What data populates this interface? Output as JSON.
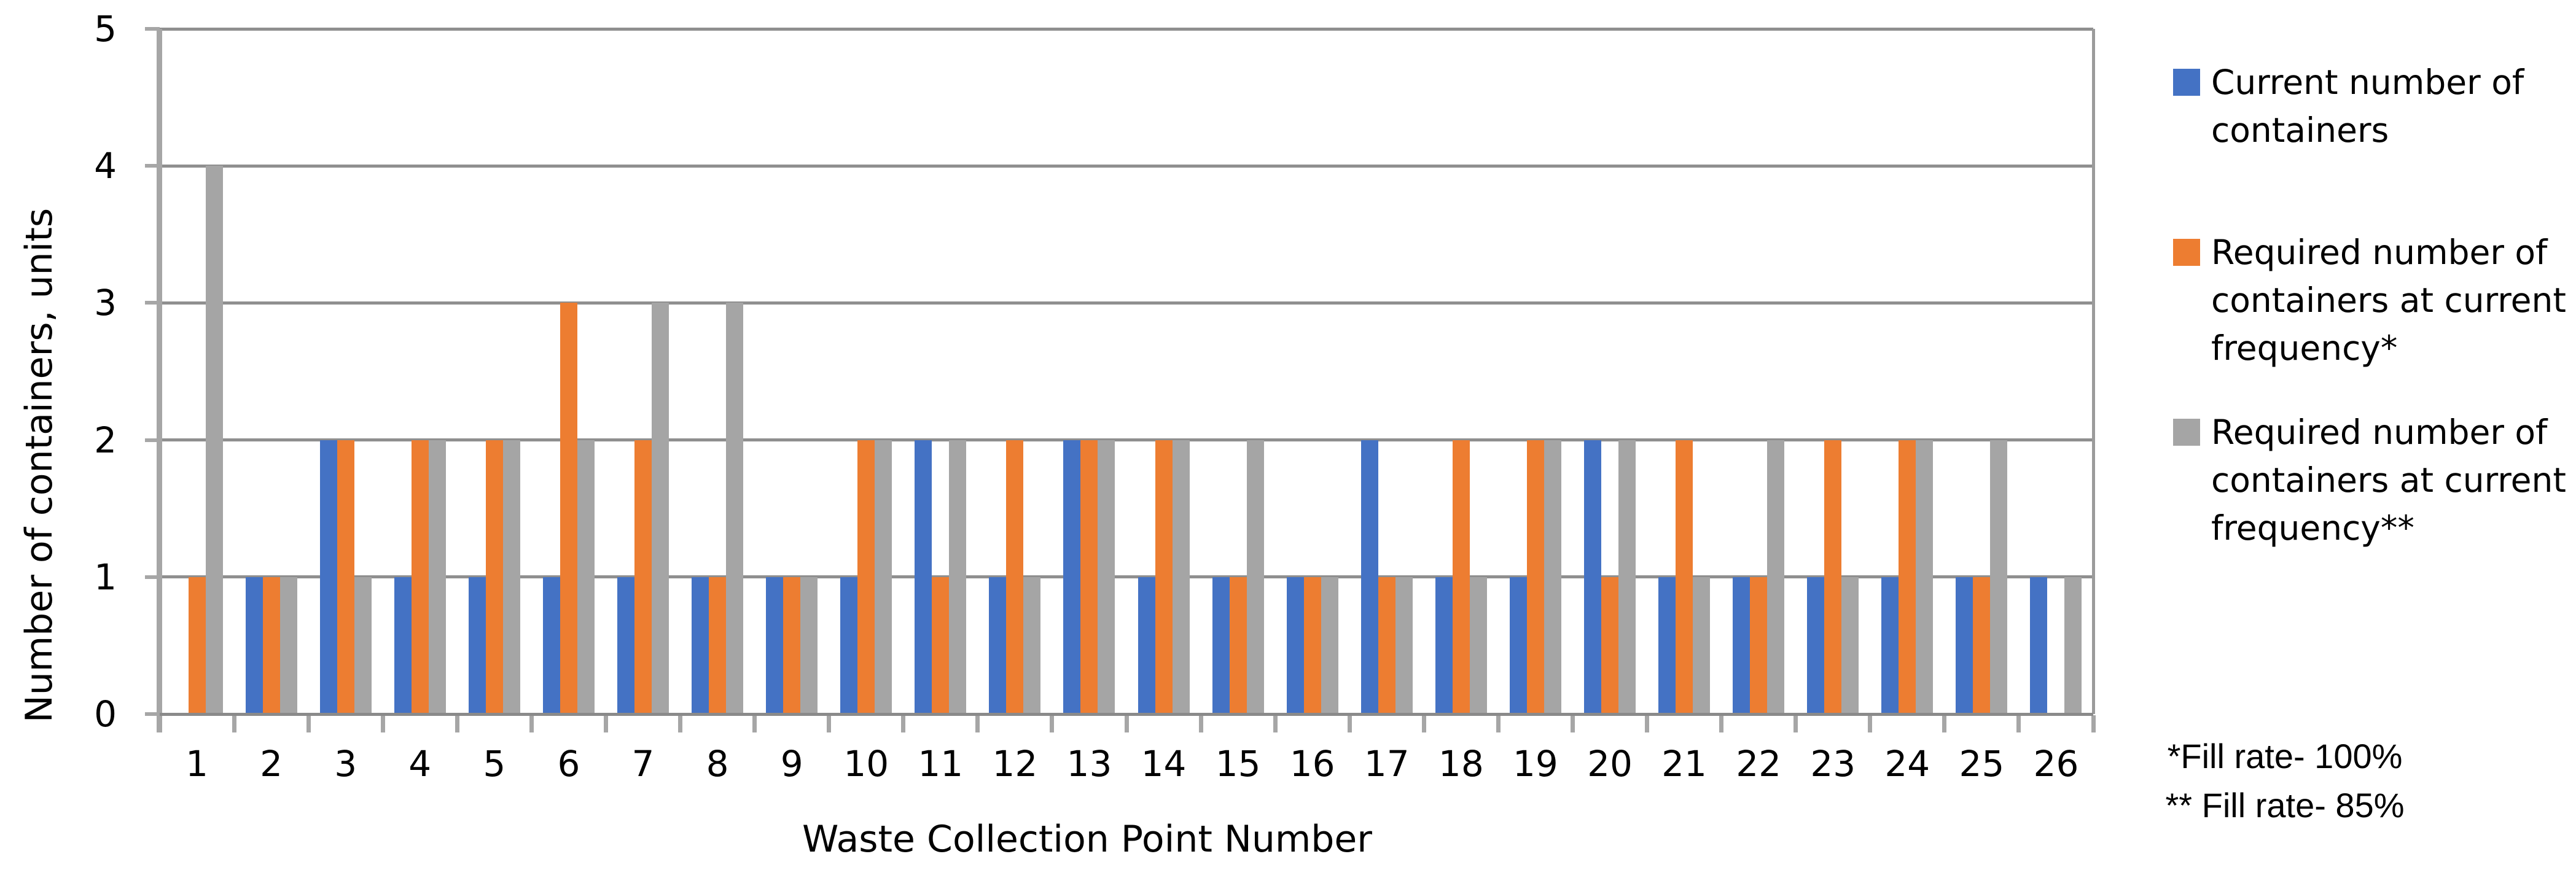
{
  "chart_data": {
    "type": "bar",
    "xlabel": "Waste Collection Point Number",
    "ylabel": "Number of containers, units",
    "categories": [
      1,
      2,
      3,
      4,
      5,
      6,
      7,
      8,
      9,
      10,
      11,
      12,
      13,
      14,
      15,
      16,
      17,
      18,
      19,
      20,
      21,
      22,
      23,
      24,
      25,
      26
    ],
    "series": [
      {
        "name": "Current number of containers",
        "lines": [
          "Current number of",
          "containers"
        ],
        "color": "#4472C4",
        "values": [
          0,
          1,
          2,
          1,
          1,
          1,
          1,
          1,
          1,
          1,
          2,
          1,
          2,
          1,
          1,
          1,
          2,
          1,
          1,
          2,
          1,
          1,
          1,
          1,
          1,
          1
        ]
      },
      {
        "name": "Required number of containers at current frequency*",
        "lines": [
          "Required number of",
          "containers at current",
          "frequency*"
        ],
        "color": "#ED7D31",
        "values": [
          1,
          1,
          2,
          2,
          2,
          3,
          2,
          1,
          1,
          2,
          1,
          2,
          2,
          2,
          1,
          1,
          1,
          2,
          2,
          1,
          2,
          1,
          2,
          2,
          1,
          0
        ]
      },
      {
        "name": "Required number of containers at current frequency**",
        "lines": [
          "Required number of",
          "containers at current",
          "frequency**"
        ],
        "color": "#A5A5A5",
        "values": [
          4,
          1,
          1,
          2,
          2,
          2,
          3,
          3,
          1,
          2,
          2,
          1,
          2,
          2,
          2,
          1,
          1,
          1,
          2,
          2,
          1,
          2,
          1,
          2,
          2,
          1
        ]
      }
    ],
    "ylim": [
      0,
      5
    ],
    "yticks": [
      0,
      1,
      2,
      3,
      4,
      5
    ],
    "grid": true,
    "legend_position": "right"
  },
  "footnotes": {
    "line1": "*Fill rate- 100%",
    "line2": "** Fill rate- 85%"
  },
  "colors": {
    "gridline": "#8F8F8F",
    "axis": "#A6A6A6",
    "background": "#FFFFFF",
    "text": "#000000"
  }
}
